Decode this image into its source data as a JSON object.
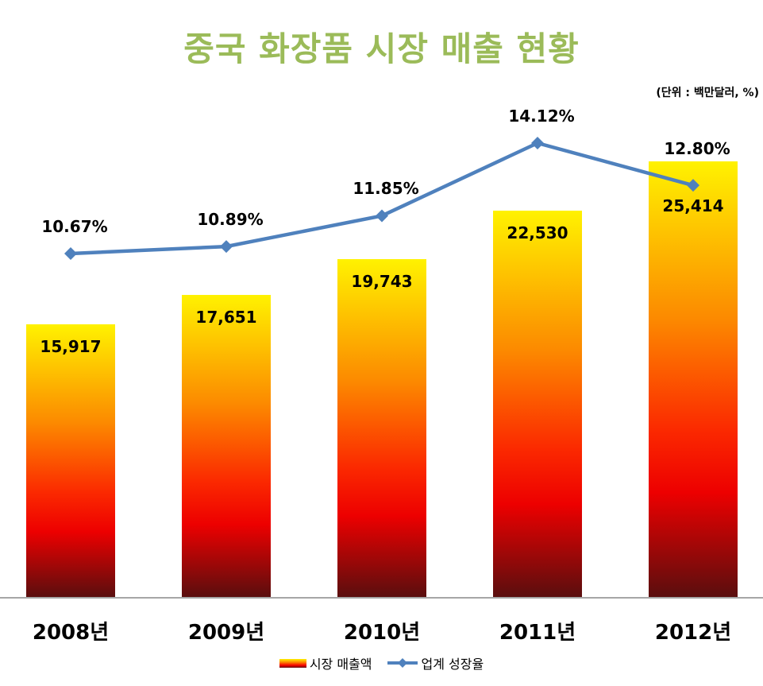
{
  "title": "중국 화장품 시장 매출 현황",
  "unit_note": "(단위 : 백만달러, %)",
  "legend": {
    "sales_label": "시장 매출액",
    "growth_label": "업계 성장율"
  },
  "colors": {
    "title_green": "#9BBB59",
    "line_blue": "#4F81BD",
    "axis_gray": "#A6A6A6",
    "label_black": "#000000",
    "bar_gradient_stops": [
      "#FFF200",
      "#FC8A00",
      "#FB2800",
      "#ED0000",
      "#5A0E0E"
    ]
  },
  "chart_data": {
    "type": "bar",
    "title": "중국 화장품 시장 매출 현황",
    "unit": "(단위 : 백만달러, %)",
    "categories": [
      "2008년",
      "2009년",
      "2010년",
      "2011년",
      "2012년"
    ],
    "series": [
      {
        "name": "시장 매출액",
        "type": "bar",
        "values": [
          15917,
          17651,
          19743,
          22530,
          25414
        ],
        "labels": [
          "15,917",
          "17,651",
          "19,743",
          "22,530",
          "25,414"
        ]
      },
      {
        "name": "업계 성장율",
        "type": "line",
        "values": [
          10.67,
          10.89,
          11.85,
          14.12,
          12.8
        ],
        "labels": [
          "10.67%",
          "10.89%",
          "11.85%",
          "14.12%",
          "12.80%"
        ]
      }
    ],
    "bar_ylim": [
      0,
      27500
    ],
    "line_ylim": [
      8.5,
      17.5
    ],
    "grid": false,
    "legend_position": "bottom"
  }
}
